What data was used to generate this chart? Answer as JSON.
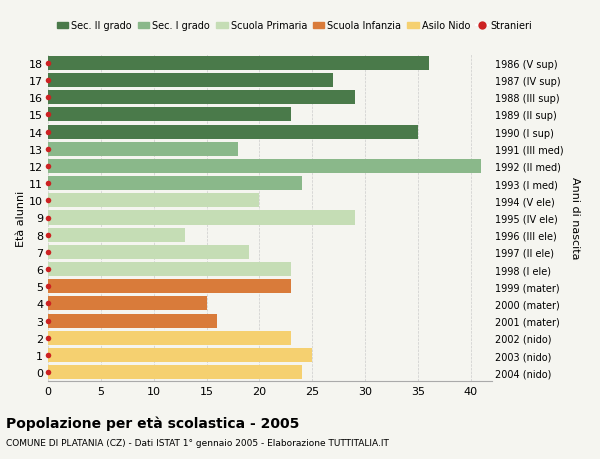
{
  "ages": [
    0,
    1,
    2,
    3,
    4,
    5,
    6,
    7,
    8,
    9,
    10,
    11,
    12,
    13,
    14,
    15,
    16,
    17,
    18
  ],
  "years": [
    "2004 (nido)",
    "2003 (nido)",
    "2002 (nido)",
    "2001 (mater)",
    "2000 (mater)",
    "1999 (mater)",
    "1998 (I ele)",
    "1997 (II ele)",
    "1996 (III ele)",
    "1995 (IV ele)",
    "1994 (V ele)",
    "1993 (I med)",
    "1992 (II med)",
    "1991 (III med)",
    "1990 (I sup)",
    "1989 (II sup)",
    "1988 (III sup)",
    "1987 (IV sup)",
    "1986 (V sup)"
  ],
  "values": [
    24,
    25,
    23,
    16,
    15,
    23,
    23,
    19,
    13,
    29,
    20,
    24,
    41,
    18,
    35,
    23,
    29,
    27,
    36
  ],
  "bar_colors": [
    "#f5d070",
    "#f5d070",
    "#f5d070",
    "#d97b3a",
    "#d97b3a",
    "#d97b3a",
    "#c5ddb5",
    "#c5ddb5",
    "#c5ddb5",
    "#c5ddb5",
    "#c5ddb5",
    "#8ab88a",
    "#8ab88a",
    "#8ab88a",
    "#4a7a4a",
    "#4a7a4a",
    "#4a7a4a",
    "#4a7a4a",
    "#4a7a4a"
  ],
  "legend_labels": [
    "Sec. II grado",
    "Sec. I grado",
    "Scuola Primaria",
    "Scuola Infanzia",
    "Asilo Nido",
    "Stranieri"
  ],
  "legend_colors": [
    "#4a7a4a",
    "#8ab88a",
    "#c5ddb5",
    "#d97b3a",
    "#f5d070",
    "#cc2222"
  ],
  "stranieri_color": "#cc2222",
  "ylabel_left": "Età alunni",
  "ylabel_right": "Anni di nascita",
  "title": "Popolazione per età scolastica - 2005",
  "subtitle": "COMUNE DI PLATANIA (CZ) - Dati ISTAT 1° gennaio 2005 - Elaborazione TUTTITALIA.IT",
  "xlim": [
    0,
    42
  ],
  "xticks": [
    0,
    5,
    10,
    15,
    20,
    25,
    30,
    35,
    40
  ],
  "bg_color": "#f5f5f0",
  "grid_color": "#cccccc",
  "stranieri_age14_dot": true
}
